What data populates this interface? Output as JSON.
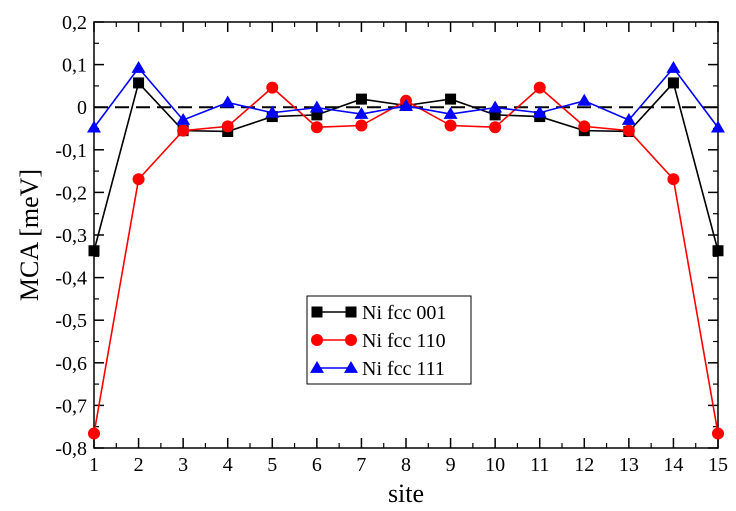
{
  "chart_data": {
    "type": "line",
    "title": "",
    "xlabel": "site",
    "ylabel": "MCA [meV]",
    "xlim": [
      1,
      15
    ],
    "ylim": [
      -0.8,
      0.2
    ],
    "x": [
      1,
      2,
      3,
      4,
      5,
      6,
      7,
      8,
      9,
      10,
      11,
      12,
      13,
      14,
      15
    ],
    "x_ticks": [
      "1",
      "2",
      "3",
      "4",
      "5",
      "6",
      "7",
      "8",
      "9",
      "10",
      "11",
      "12",
      "13",
      "14",
      "15"
    ],
    "y_ticks": [
      {
        "value": 0.2,
        "label": "0,2"
      },
      {
        "value": 0.1,
        "label": "0,1"
      },
      {
        "value": 0.0,
        "label": "0"
      },
      {
        "value": -0.1,
        "label": "-0,1"
      },
      {
        "value": -0.2,
        "label": "-0,2"
      },
      {
        "value": -0.3,
        "label": "-0,3"
      },
      {
        "value": -0.4,
        "label": "-0,4"
      },
      {
        "value": -0.5,
        "label": "-0,5"
      },
      {
        "value": -0.6,
        "label": "-0,6"
      },
      {
        "value": -0.7,
        "label": "-0,7"
      },
      {
        "value": -0.8,
        "label": "-0,8"
      }
    ],
    "reference_line": {
      "y": 0,
      "style": "dashed",
      "color": "#000000"
    },
    "legend_position": "center",
    "series": [
      {
        "name": "Ni fcc 001",
        "color": "#000000",
        "marker": "square",
        "values": [
          -0.337,
          0.057,
          -0.055,
          -0.057,
          -0.022,
          -0.018,
          0.019,
          0.004,
          0.019,
          -0.018,
          -0.022,
          -0.055,
          -0.057,
          0.057,
          -0.337
        ]
      },
      {
        "name": "Ni fcc 110",
        "color": "#ff0000",
        "marker": "circle",
        "values": [
          -0.766,
          -0.169,
          -0.055,
          -0.045,
          0.046,
          -0.047,
          -0.043,
          0.015,
          -0.043,
          -0.047,
          0.046,
          -0.045,
          -0.055,
          -0.169,
          -0.766
        ]
      },
      {
        "name": "Ni fcc 111",
        "color": "#0000ff",
        "marker": "triangle",
        "values": [
          -0.048,
          0.092,
          -0.03,
          0.011,
          -0.013,
          -0.001,
          -0.016,
          0.003,
          -0.016,
          -0.001,
          -0.013,
          0.015,
          -0.03,
          0.092,
          -0.048
        ]
      }
    ]
  }
}
